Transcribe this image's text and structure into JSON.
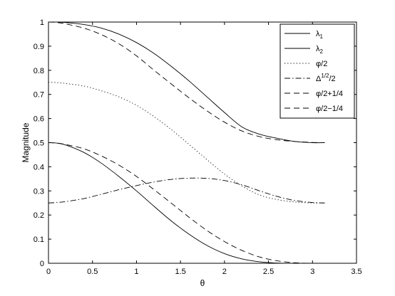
{
  "chart_data": {
    "type": "line",
    "xlabel": "θ",
    "ylabel": "Magnitude",
    "xlim": [
      0,
      3.5
    ],
    "ylim": [
      0,
      1
    ],
    "xticks": [
      "0",
      "0.5",
      "1",
      "1.5",
      "2",
      "2.5",
      "3",
      "3.5"
    ],
    "yticks": [
      "0",
      "0.05",
      "0.1",
      "0.15",
      "0.2",
      "0.25",
      "0.3",
      "0.35",
      "0.4",
      "0.45",
      "0.5",
      "0.55",
      "0.6",
      "0.65",
      "0.7",
      "0.75",
      "0.8",
      "0.85",
      "0.9",
      "0.95",
      "1"
    ],
    "ytick_labels": [
      "0",
      "0.1",
      "0.2",
      "0.3",
      "0.4",
      "0.5",
      "0.6",
      "0.7",
      "0.8",
      "0.9",
      "1"
    ],
    "grid": false,
    "legend_position": "top-right",
    "series": [
      {
        "name": "λ1",
        "style": "solid",
        "x": [
          0,
          0.1,
          0.2,
          0.4,
          0.6,
          0.8,
          1.0,
          1.2,
          1.4,
          1.6,
          1.8,
          2.0,
          2.2,
          2.4,
          2.6,
          2.8,
          3.0,
          3.14
        ],
        "y": [
          0.5,
          0.498,
          0.49,
          0.46,
          0.415,
          0.36,
          0.3,
          0.236,
          0.174,
          0.12,
          0.074,
          0.04,
          0.018,
          0.006,
          0.001,
          0.0,
          0.0,
          0.0
        ]
      },
      {
        "name": "λ2",
        "style": "solid",
        "x": [
          0,
          0.1,
          0.2,
          0.4,
          0.6,
          0.8,
          1.0,
          1.2,
          1.4,
          1.6,
          1.8,
          2.0,
          2.2,
          2.4,
          2.6,
          2.8,
          3.0,
          3.14
        ],
        "y": [
          1.0,
          1.0,
          0.998,
          0.99,
          0.975,
          0.95,
          0.915,
          0.87,
          0.815,
          0.755,
          0.69,
          0.625,
          0.565,
          0.535,
          0.518,
          0.505,
          0.5,
          0.5
        ]
      },
      {
        "name": "φ/2",
        "style": "dotted",
        "x": [
          0,
          0.1,
          0.2,
          0.4,
          0.6,
          0.8,
          1.0,
          1.2,
          1.4,
          1.6,
          1.8,
          2.0,
          2.2,
          2.4,
          2.6,
          2.8,
          3.0,
          3.14
        ],
        "y": [
          0.75,
          0.749,
          0.745,
          0.735,
          0.715,
          0.69,
          0.655,
          0.608,
          0.553,
          0.492,
          0.43,
          0.37,
          0.32,
          0.283,
          0.264,
          0.254,
          0.25,
          0.25
        ]
      },
      {
        "name": "Δ1/2/2",
        "style": "dashdot",
        "x": [
          0,
          0.1,
          0.2,
          0.4,
          0.6,
          0.8,
          1.0,
          1.2,
          1.4,
          1.6,
          1.8,
          2.0,
          2.2,
          2.4,
          2.6,
          2.8,
          3.0,
          3.14
        ],
        "y": [
          0.25,
          0.252,
          0.256,
          0.268,
          0.286,
          0.305,
          0.322,
          0.337,
          0.348,
          0.353,
          0.352,
          0.343,
          0.325,
          0.3,
          0.277,
          0.26,
          0.252,
          0.25
        ]
      },
      {
        "name": "φ/2+1/4",
        "style": "dashed",
        "x": [
          0,
          0.1,
          0.2,
          0.4,
          0.6,
          0.8,
          1.0,
          1.2,
          1.4,
          1.6,
          1.8,
          2.0,
          2.2,
          2.4,
          2.6,
          2.8,
          3.0,
          3.14
        ],
        "y": [
          1.0,
          0.998,
          0.992,
          0.975,
          0.948,
          0.91,
          0.86,
          0.8,
          0.742,
          0.685,
          0.632,
          0.585,
          0.548,
          0.525,
          0.512,
          0.505,
          0.501,
          0.5
        ]
      },
      {
        "name": "φ/2−1/4",
        "style": "dashed",
        "x": [
          0,
          0.1,
          0.2,
          0.4,
          0.6,
          0.8,
          1.0,
          1.2,
          1.4,
          1.6,
          1.8,
          2.0,
          2.2,
          2.4,
          2.6,
          2.8,
          3.0,
          3.14
        ],
        "y": [
          0.5,
          0.498,
          0.492,
          0.475,
          0.445,
          0.407,
          0.36,
          0.305,
          0.248,
          0.19,
          0.136,
          0.09,
          0.053,
          0.026,
          0.01,
          0.002,
          0.0,
          0.0
        ]
      }
    ],
    "legend": [
      {
        "main": "λ",
        "sub": "1",
        "sup": "",
        "rest": ""
      },
      {
        "main": "λ",
        "sub": "2",
        "sup": "",
        "rest": ""
      },
      {
        "main": "φ/2",
        "sub": "",
        "sup": "",
        "rest": ""
      },
      {
        "main": "Δ",
        "sub": "",
        "sup": "1/2",
        "rest": "/2"
      },
      {
        "main": "φ/2+1/4",
        "sub": "",
        "sup": "",
        "rest": ""
      },
      {
        "main": "φ/2−1/4",
        "sub": "",
        "sup": "",
        "rest": ""
      }
    ]
  }
}
